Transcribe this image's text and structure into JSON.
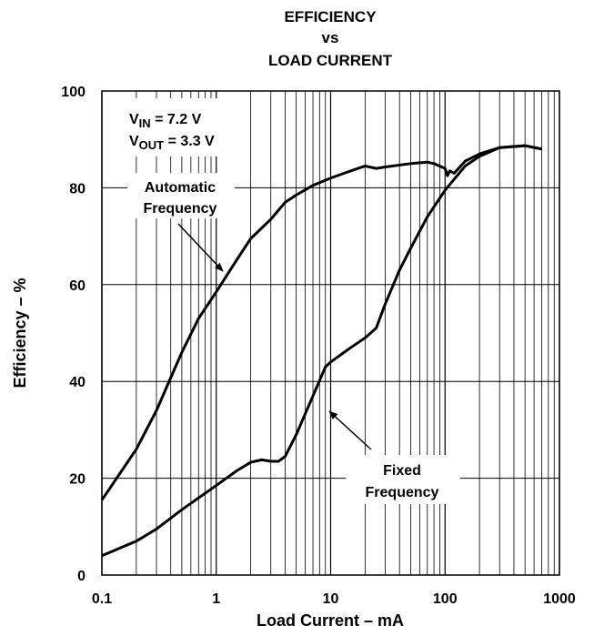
{
  "chart_data": {
    "type": "line",
    "title": [
      "EFFICIENCY",
      "vs",
      "LOAD CURRENT"
    ],
    "xlabel": "Load Current – mA",
    "ylabel": "Efficiency – %",
    "xscale": "log",
    "xlim": [
      0.1,
      1000
    ],
    "xticks": [
      0.1,
      1,
      10,
      100,
      1000
    ],
    "xticks_minor": [
      0.2,
      0.3,
      0.4,
      0.5,
      0.6,
      0.7,
      0.8,
      0.9,
      2,
      3,
      4,
      5,
      6,
      7,
      8,
      9,
      20,
      30,
      40,
      50,
      60,
      70,
      80,
      90,
      200,
      300,
      400,
      500,
      600,
      700,
      800,
      900
    ],
    "ylim": [
      0,
      100
    ],
    "yticks": [
      0,
      20,
      40,
      60,
      80,
      100
    ],
    "grid": true,
    "annotations": [
      {
        "parts": [
          "V",
          "IN",
          " = 7.2 V"
        ]
      },
      {
        "parts": [
          "V",
          "OUT",
          " = 3.3 V"
        ]
      },
      {
        "lines": [
          "Automatic",
          "Frequency"
        ]
      },
      {
        "lines": [
          "Fixed",
          "Frequency"
        ]
      }
    ],
    "series": [
      {
        "name": "Automatic Frequency",
        "color": "#000000",
        "x": [
          0.1,
          0.2,
          0.3,
          0.5,
          0.7,
          1,
          1.5,
          2,
          3,
          4,
          5,
          7,
          10,
          15,
          20,
          25,
          30,
          50,
          70,
          80,
          100,
          105,
          110,
          120,
          150,
          200,
          300,
          500,
          700
        ],
        "values": [
          15.5,
          26,
          34,
          46,
          53,
          58.5,
          65,
          69.5,
          73.5,
          77,
          78.5,
          80.5,
          82,
          83.5,
          84.5,
          84,
          84.3,
          85,
          85.3,
          85,
          84,
          82.5,
          83.5,
          83,
          85.5,
          87,
          88.3,
          88.7,
          88
        ]
      },
      {
        "name": "Fixed Frequency",
        "color": "#000000",
        "x": [
          0.1,
          0.2,
          0.3,
          0.5,
          1,
          1.5,
          2,
          2.5,
          3,
          3.5,
          4,
          5,
          7,
          9,
          10,
          15,
          20,
          25,
          30,
          40,
          50,
          70,
          100,
          150,
          200,
          300,
          500,
          700
        ],
        "values": [
          4,
          7,
          9.5,
          13.5,
          18.5,
          21.5,
          23.3,
          23.8,
          23.5,
          23.5,
          24.5,
          29,
          37,
          43,
          44,
          47,
          49,
          51,
          56,
          63,
          67.5,
          74,
          79.5,
          84.5,
          86.5,
          88.3,
          88.7,
          88
        ]
      }
    ]
  }
}
